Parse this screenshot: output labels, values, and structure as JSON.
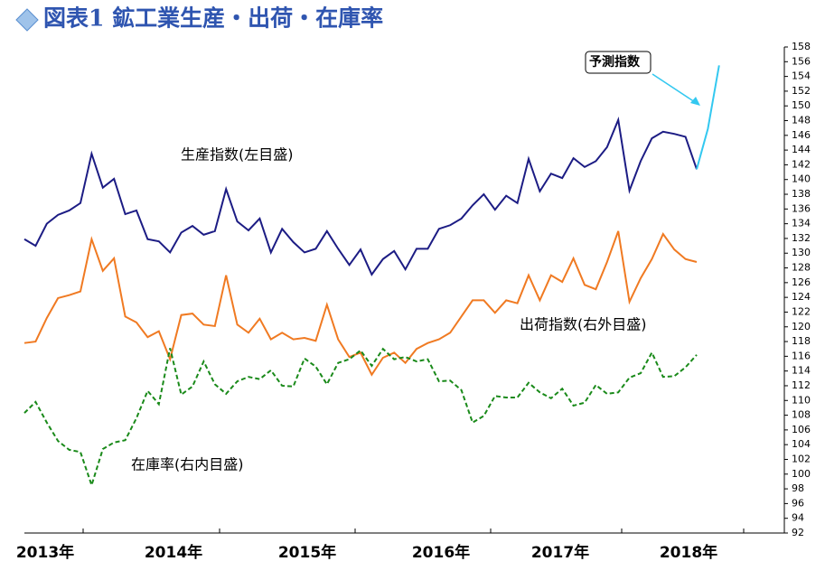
{
  "chart_data": {
    "type": "line",
    "title": "図表1 鉱工業生産・出荷・在庫率",
    "x_labels": [
      "2013年",
      "2014年",
      "2015年",
      "2016年",
      "2017年",
      "2018年"
    ],
    "annotations": [
      "生産指数(左目盛)",
      "出荷指数(右外目盛)",
      "在庫率(右内目盛)",
      "予測指数"
    ],
    "ylim": [
      92,
      158
    ],
    "yticks": [
      92,
      94,
      96,
      98,
      100,
      102,
      104,
      106,
      108,
      110,
      112,
      114,
      116,
      118,
      120,
      122,
      124,
      126,
      128,
      130,
      132,
      134,
      136,
      138,
      140,
      142,
      144,
      146,
      148,
      150,
      152,
      154,
      156,
      158
    ],
    "series": [
      {
        "name": "生産指数",
        "color": "#1c1c84",
        "dashed": false,
        "values": [
          131.9,
          131.0,
          134.0,
          135.2,
          135.8,
          136.8,
          143.5,
          138.9,
          140.1,
          135.3,
          135.8,
          131.9,
          131.6,
          130.1,
          132.8,
          133.7,
          132.5,
          133.0,
          138.7,
          134.3,
          133.1,
          134.7,
          130.1,
          133.3,
          131.5,
          130.1,
          130.6,
          133.0,
          130.6,
          128.4,
          130.5,
          127.1,
          129.2,
          130.3,
          127.8,
          130.6,
          130.6,
          133.3,
          133.8,
          134.7,
          136.5,
          138.0,
          135.9,
          137.8,
          136.8,
          142.8,
          138.4,
          140.8,
          140.2,
          142.9,
          141.7,
          142.5,
          144.4,
          148.1,
          138.5,
          142.5,
          145.6,
          146.5,
          146.2,
          145.8,
          141.4,
          null,
          null
        ]
      },
      {
        "name": "出荷指数",
        "color": "#f07a22",
        "dashed": false,
        "values": [
          117.8,
          118.0,
          121.2,
          123.9,
          124.3,
          124.8,
          131.9,
          127.6,
          129.3,
          121.4,
          120.6,
          118.6,
          119.4,
          115.6,
          121.6,
          121.8,
          120.3,
          120.1,
          127.0,
          120.3,
          119.2,
          121.1,
          118.3,
          119.2,
          118.3,
          118.5,
          118.1,
          123.0,
          118.3,
          115.9,
          116.5,
          113.5,
          115.8,
          116.5,
          115.1,
          117.0,
          117.8,
          118.3,
          119.2,
          121.4,
          123.6,
          123.6,
          121.9,
          123.6,
          123.2,
          127.0,
          123.6,
          127.0,
          126.1,
          129.3,
          125.7,
          125.1,
          128.8,
          133.0,
          123.4,
          126.6,
          129.2,
          132.6,
          130.5,
          129.2,
          128.8,
          null,
          null
        ]
      },
      {
        "name": "在庫率",
        "color": "#1a8a1a",
        "dashed": true,
        "values": [
          108.3,
          109.8,
          107.0,
          104.5,
          103.3,
          103.0,
          98.5,
          103.4,
          104.3,
          104.6,
          107.6,
          111.3,
          109.5,
          117.1,
          110.8,
          111.9,
          115.3,
          112.2,
          110.9,
          112.6,
          113.2,
          112.9,
          114.1,
          112.0,
          111.9,
          115.7,
          114.6,
          112.2,
          115.1,
          115.6,
          116.8,
          114.7,
          117.0,
          115.6,
          115.9,
          115.3,
          115.6,
          112.6,
          112.7,
          111.4,
          107.0,
          107.9,
          110.6,
          110.4,
          110.4,
          112.4,
          111.1,
          110.3,
          111.6,
          109.3,
          109.7,
          112.1,
          110.9,
          111.1,
          113.1,
          113.7,
          116.5,
          113.2,
          113.3,
          114.5,
          116.2,
          null,
          null
        ]
      },
      {
        "name": "予測指数",
        "color": "#33c8f0",
        "dashed": false,
        "values": [
          null,
          null,
          null,
          null,
          null,
          null,
          null,
          null,
          null,
          null,
          null,
          null,
          null,
          null,
          null,
          null,
          null,
          null,
          null,
          null,
          null,
          null,
          null,
          null,
          null,
          null,
          null,
          null,
          null,
          null,
          null,
          null,
          null,
          null,
          null,
          null,
          null,
          null,
          null,
          null,
          null,
          null,
          null,
          null,
          null,
          null,
          null,
          null,
          null,
          null,
          null,
          null,
          null,
          null,
          null,
          null,
          null,
          null,
          null,
          null,
          141.4,
          146.9,
          155.5
        ]
      }
    ]
  }
}
